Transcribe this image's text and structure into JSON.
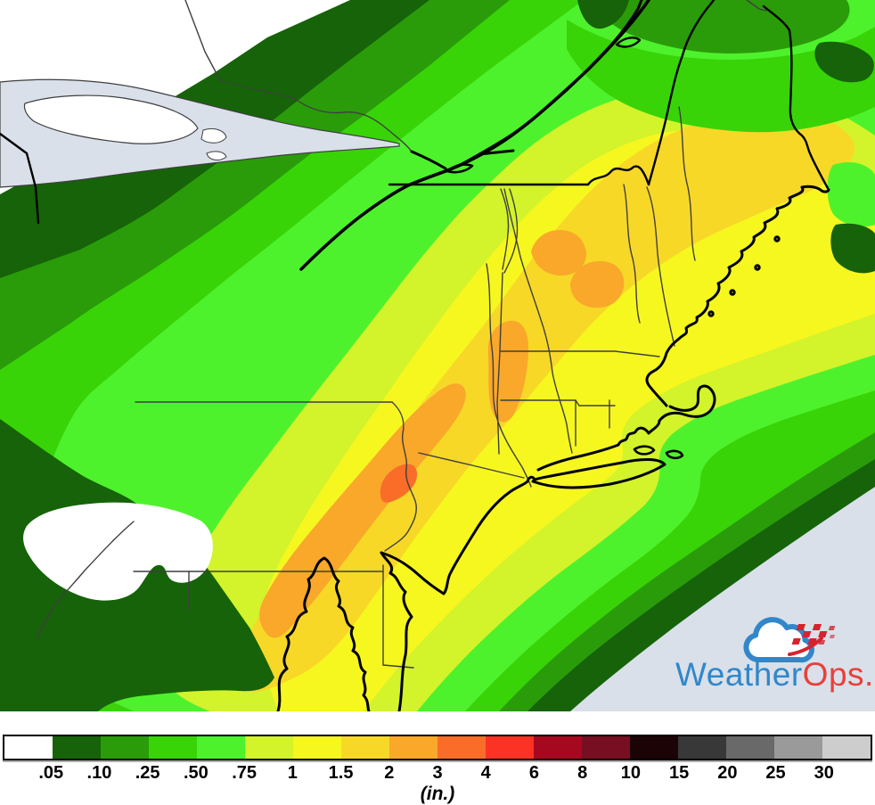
{
  "legend": {
    "boundaries": [
      ".05",
      ".10",
      ".25",
      ".50",
      ".75",
      "1",
      "1.5",
      "2",
      "3",
      "4",
      "6",
      "8",
      "10",
      "15",
      "20",
      "25",
      "30"
    ],
    "swatch_colors": [
      "#ffffff",
      "#166309",
      "#2a9c0a",
      "#38d408",
      "#4ef22c",
      "#d3f32b",
      "#f6f71f",
      "#f7d827",
      "#f9a82a",
      "#f96d28",
      "#fb3224",
      "#a6081f",
      "#770e21",
      "#1c0406",
      "#383838",
      "#696969",
      "#9a9a9a",
      "#cdcdcd"
    ],
    "unit_label": "(in.)"
  },
  "logo": {
    "weather": "Weather",
    "ops": "Ops"
  },
  "colors": {
    "white": "#ffffff",
    "g05": "#166309",
    "g10": "#2a9c0a",
    "g25": "#38d408",
    "g50": "#4ef22c",
    "g75": "#d3f32b",
    "y1": "#f6f71f",
    "y15": "#f7d827",
    "o2": "#f9a82a",
    "o3": "#f96d28",
    "water": "#d9e0ea",
    "line": "#3f3f3f",
    "coast": "#000000",
    "logo_blue": "#3187c9",
    "logo_red": "#e8403a",
    "flag_red": "#d6232e"
  }
}
